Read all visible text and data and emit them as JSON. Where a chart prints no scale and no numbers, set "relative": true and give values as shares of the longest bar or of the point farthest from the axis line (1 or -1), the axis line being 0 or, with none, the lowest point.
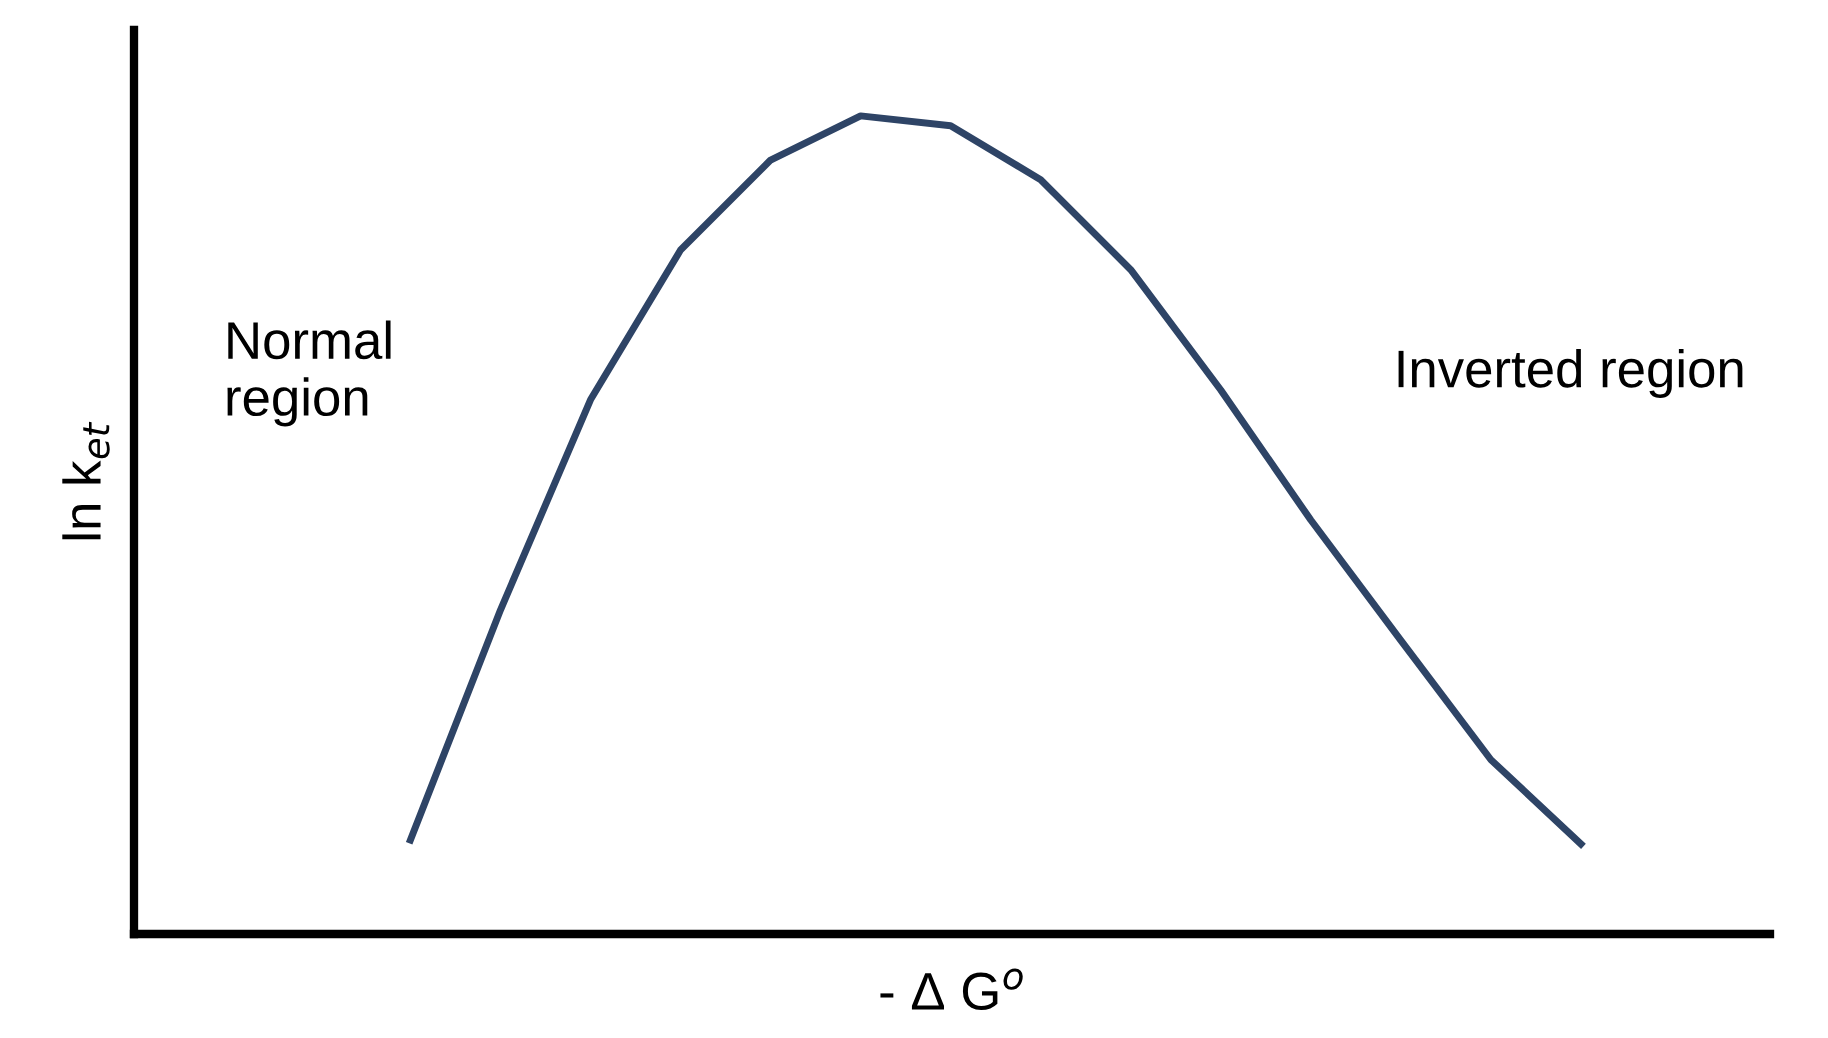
{
  "chart_data": {
    "type": "line",
    "relative": true,
    "categories": [
      null,
      null,
      null,
      null,
      null,
      null,
      null,
      null,
      null,
      null,
      null,
      null,
      null,
      null
    ],
    "series": [
      {
        "color": "#2e4466",
        "values": [
          0.115,
          0.396,
          0.653,
          0.836,
          0.946,
          1,
          0.988,
          0.922,
          0.812,
          0.665,
          0.506,
          0.359,
          0.213,
          0.11
        ]
      }
    ],
    "xlabel": "- Δ G$^{o}$",
    "ylabel": "ln k$_{et}$",
    "annotations": [
      "Normal\nregion",
      "Inverted region"
    ],
    "grid": false,
    "legend": false,
    "marker": "none",
    "line_style": "solid"
  }
}
